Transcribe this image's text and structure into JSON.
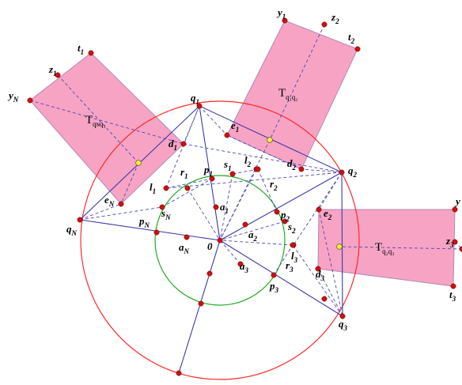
{
  "colors": {
    "background": "#ffffff",
    "outer_circle": "#ff2a2a",
    "inner_circle": "#22aa22",
    "solid_line": "#3a3aa8",
    "dashed_line": "#4a4ab8",
    "rect_fill": "#f7a3c4",
    "rect_stroke": "#b08ab8",
    "point": "#cc1111",
    "center_point": "#ffee22"
  },
  "labels": {
    "O": "0",
    "q1": [
      "q",
      "1"
    ],
    "q2": [
      "q",
      "2"
    ],
    "q3": [
      "q",
      "3"
    ],
    "qN": [
      "q",
      "N"
    ],
    "p1": [
      "p",
      "1"
    ],
    "p2": [
      "p",
      "2"
    ],
    "p3": [
      "p",
      "3"
    ],
    "pN": [
      "p",
      "N"
    ],
    "a1": [
      "a",
      "1"
    ],
    "a2": [
      "a",
      "2"
    ],
    "a3": [
      "a",
      "3"
    ],
    "aN": [
      "a",
      "N"
    ],
    "r1": [
      "r",
      "1"
    ],
    "r2": [
      "r",
      "2"
    ],
    "r3": [
      "r",
      "3"
    ],
    "s1": [
      "s",
      "1"
    ],
    "s2": [
      "s",
      "2"
    ],
    "sN": [
      "s",
      "N"
    ],
    "l1": [
      "l",
      "1"
    ],
    "l2": [
      "l",
      "2"
    ],
    "l3": [
      "l",
      "3"
    ],
    "d1": [
      "d",
      "1"
    ],
    "d2": [
      "d",
      "2"
    ],
    "d3": [
      "d",
      "3"
    ],
    "e1": [
      "e",
      "1"
    ],
    "e2": [
      "e",
      "2"
    ],
    "e3": [
      "e",
      "3"
    ],
    "eN": [
      "e",
      "N"
    ],
    "t1": [
      "t",
      "1"
    ],
    "t2": [
      "t",
      "2"
    ],
    "t3": [
      "t",
      "3"
    ],
    "y1": [
      "y",
      "1"
    ],
    "yN": [
      "y",
      "N"
    ],
    "y3": [
      "y",
      ""
    ],
    "z1": [
      "z",
      "1"
    ],
    "z2": [
      "z",
      "2"
    ],
    "z3": [
      "z",
      "3"
    ],
    "T_q1q2": [
      "T",
      "q₁q₂"
    ],
    "T_q2q3": [
      "T",
      "q₂q₃"
    ],
    "T_qNq1": [
      "T",
      "qɴq₁"
    ]
  }
}
